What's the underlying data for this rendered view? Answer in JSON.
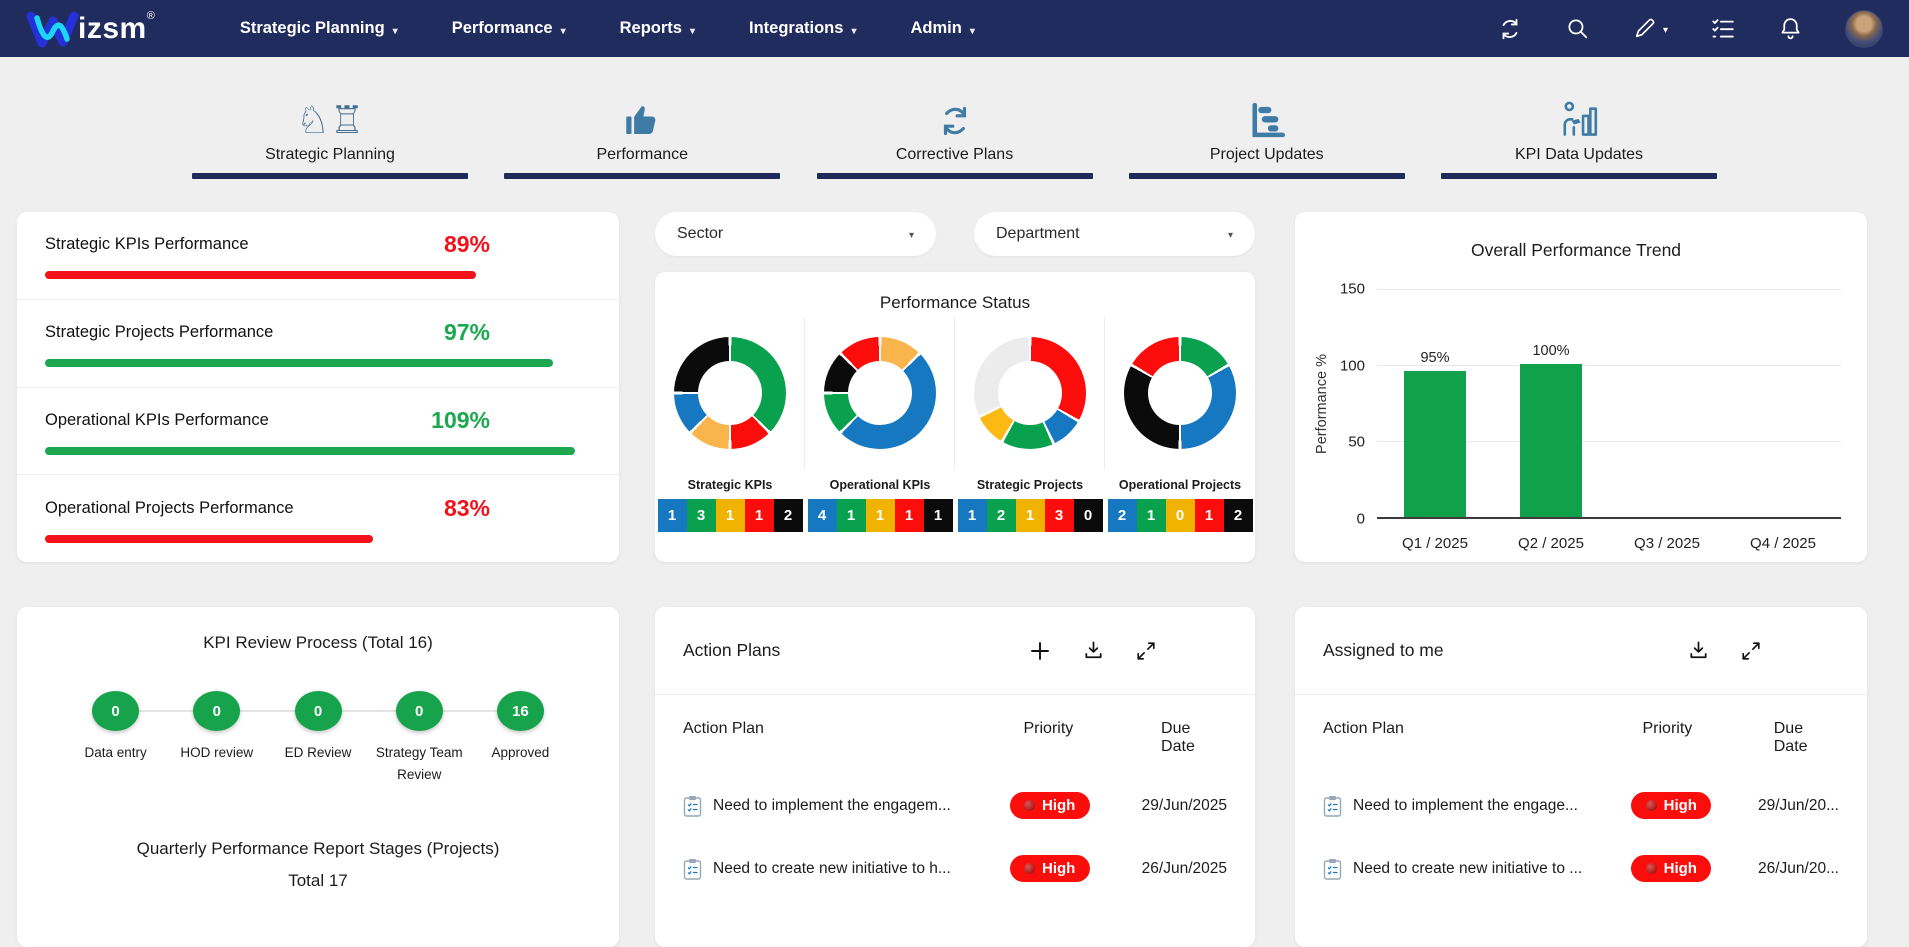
{
  "navbar": {
    "brand": {
      "logo_text": "izsm",
      "reg": "®"
    },
    "items": [
      {
        "label": "Strategic Planning"
      },
      {
        "label": "Performance"
      },
      {
        "label": "Reports"
      },
      {
        "label": "Integrations"
      },
      {
        "label": "Admin"
      }
    ]
  },
  "tabs": [
    {
      "label": "Strategic Planning"
    },
    {
      "label": "Performance"
    },
    {
      "label": "Corrective Plans"
    },
    {
      "label": "Project Updates"
    },
    {
      "label": "KPI Data Updates"
    }
  ],
  "kpi_summary": {
    "rows": [
      {
        "label": "Strategic KPIs Performance",
        "value": "89%",
        "color": "#F2121B",
        "bar_pct": 79
      },
      {
        "label": "Strategic Projects Performance",
        "value": "97%",
        "color": "#1CA750",
        "bar_pct": 93
      },
      {
        "label": "Operational KPIs Performance",
        "value": "109%",
        "color": "#1CA750",
        "bar_pct": 97
      },
      {
        "label": "Operational Projects Performance",
        "value": "83%",
        "color": "#F2121B",
        "bar_pct": 60
      }
    ]
  },
  "filters": {
    "sector": "Sector",
    "department": "Department"
  },
  "performance_status": {
    "title": "Performance Status",
    "badge_colors": [
      "#1778C2",
      "#0AA14E",
      "#F0B400",
      "#FA0D0B",
      "#0B0B0B"
    ],
    "groups": [
      {
        "label": "Strategic KPIs",
        "counts": [
          "1",
          "3",
          "1",
          "1",
          "2"
        ],
        "segments": [
          [
            "#0AA14E",
            135
          ],
          [
            "#FA0D0B",
            45
          ],
          [
            "#F9B54C",
            45
          ],
          [
            "#1778C2",
            45
          ],
          [
            "#0B0B0B",
            90
          ]
        ]
      },
      {
        "label": "Operational KPIs",
        "counts": [
          "4",
          "1",
          "1",
          "1",
          "1"
        ],
        "segments": [
          [
            "#F9B54C",
            45
          ],
          [
            "#1778C2",
            180
          ],
          [
            "#0AA14E",
            45
          ],
          [
            "#0B0B0B",
            45
          ],
          [
            "#FA0D0B",
            45
          ]
        ]
      },
      {
        "label": "Strategic Projects",
        "counts": [
          "1",
          "2",
          "1",
          "3",
          "0"
        ],
        "segments": [
          [
            "#FA0D0B",
            120
          ],
          [
            "#1778C2",
            35
          ],
          [
            "#0AA14E",
            55
          ],
          [
            "#FDB913",
            35
          ],
          [
            "#ECECEC",
            115
          ]
        ]
      },
      {
        "label": "Operational Projects",
        "counts": [
          "2",
          "1",
          "0",
          "1",
          "2"
        ],
        "segments": [
          [
            "#0AA14E",
            60
          ],
          [
            "#1778C2",
            120
          ],
          [
            "#0B0B0B",
            120
          ],
          [
            "#FA0D0B",
            60
          ]
        ]
      }
    ]
  },
  "chart_data": [
    {
      "type": "bar",
      "title": "Overall Performance Trend",
      "ylabel": "Performance %",
      "categories": [
        "Q1 / 2025",
        "Q2 / 2025",
        "Q3 / 2025",
        "Q4 / 2025"
      ],
      "values": [
        95,
        100,
        null,
        null
      ],
      "bar_labels": [
        "95%",
        "100%",
        "",
        ""
      ],
      "ylim": [
        0,
        150
      ],
      "yticks": [
        "150",
        "100",
        "50",
        "0"
      ],
      "bar_color": "#12A14B",
      "grid": true,
      "legend": false
    },
    {
      "type": "pie",
      "title": "Strategic KPIs",
      "values": [
        1,
        3,
        1,
        1,
        2
      ],
      "colors": [
        "#1778C2",
        "#0AA14E",
        "#F0B400",
        "#FA0D0B",
        "#0B0B0B"
      ]
    },
    {
      "type": "pie",
      "title": "Operational KPIs",
      "values": [
        4,
        1,
        1,
        1,
        1
      ],
      "colors": [
        "#1778C2",
        "#0AA14E",
        "#F0B400",
        "#FA0D0B",
        "#0B0B0B"
      ]
    },
    {
      "type": "pie",
      "title": "Strategic Projects",
      "values": [
        1,
        2,
        1,
        3,
        0
      ],
      "colors": [
        "#1778C2",
        "#0AA14E",
        "#F0B400",
        "#FA0D0B",
        "#0B0B0B"
      ]
    },
    {
      "type": "pie",
      "title": "Operational Projects",
      "values": [
        2,
        1,
        0,
        1,
        2
      ],
      "colors": [
        "#1778C2",
        "#0AA14E",
        "#F0B400",
        "#FA0D0B",
        "#0B0B0B"
      ]
    }
  ],
  "kpi_review": {
    "title": "KPI Review Process (Total 16)",
    "stages": [
      {
        "label": "Data entry",
        "value": "0"
      },
      {
        "label": "HOD review",
        "value": "0"
      },
      {
        "label": "ED Review",
        "value": "0"
      },
      {
        "label": "Strategy Team Review",
        "value": "0"
      },
      {
        "label": "Approved",
        "value": "16"
      }
    ],
    "subtitle": "Quarterly Performance Report Stages (Projects)",
    "total_label": "Total 17"
  },
  "action_plans": {
    "title": "Action Plans",
    "priority_color": "#FA0D0B",
    "columns": [
      "Action Plan",
      "Priority",
      "Due Date"
    ],
    "rows": [
      {
        "text": "Need to implement the engagem...",
        "priority": "High",
        "due": "29/Jun/2025"
      },
      {
        "text": "Need to create new initiative to h...",
        "priority": "High",
        "due": "26/Jun/2025"
      }
    ]
  },
  "assigned_to_me": {
    "title": "Assigned to me",
    "columns": [
      "Action Plan",
      "Priority",
      "Due Date"
    ],
    "rows": [
      {
        "text": "Need to implement the engage...",
        "priority": "High",
        "due": "29/Jun/20..."
      },
      {
        "text": "Need to create new initiative to ...",
        "priority": "High",
        "due": "26/Jun/20..."
      }
    ]
  }
}
